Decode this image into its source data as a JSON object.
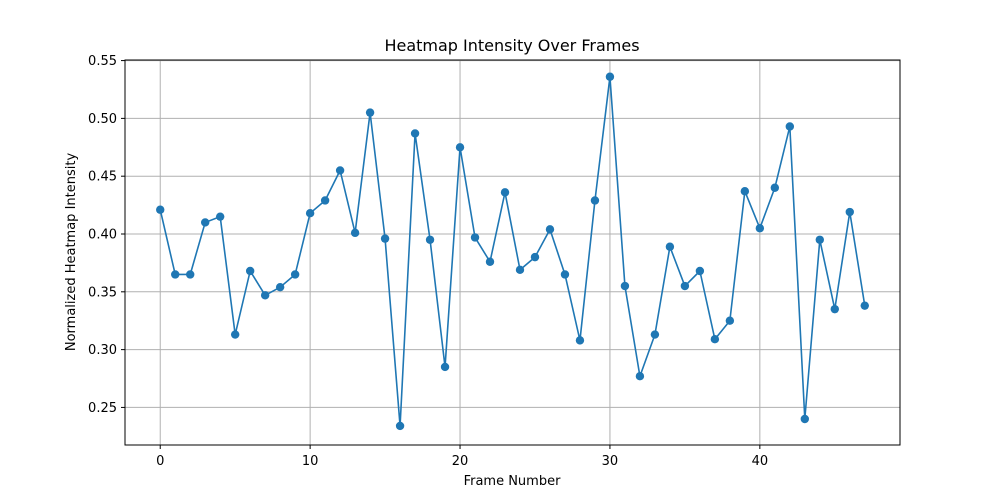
{
  "chart_data": {
    "type": "line",
    "title": "Heatmap Intensity Over Frames",
    "xlabel": "Frame Number",
    "ylabel": "Normalized Heatmap Intensity",
    "xlim": [
      -2.35,
      49.35
    ],
    "ylim": [
      0.2175,
      0.5505
    ],
    "xticks": [
      0,
      10,
      20,
      30,
      40
    ],
    "xtick_labels": [
      "0",
      "10",
      "20",
      "30",
      "40"
    ],
    "yticks": [
      0.25,
      0.3,
      0.35,
      0.4,
      0.45,
      0.5,
      0.55
    ],
    "ytick_labels": [
      "0.25",
      "0.30",
      "0.35",
      "0.40",
      "0.45",
      "0.50",
      "0.55"
    ],
    "grid": true,
    "legend": "none",
    "series": [
      {
        "color": "#1f77b4",
        "marker": "circle",
        "x": [
          0,
          1,
          2,
          3,
          4,
          5,
          6,
          7,
          8,
          9,
          10,
          11,
          12,
          13,
          14,
          15,
          16,
          17,
          18,
          19,
          20,
          21,
          22,
          23,
          24,
          25,
          26,
          27,
          28,
          29,
          30,
          31,
          32,
          33,
          34,
          35,
          36,
          37,
          38,
          39,
          40,
          41,
          42,
          43,
          44,
          45,
          46,
          47
        ],
        "y": [
          0.421,
          0.365,
          0.365,
          0.41,
          0.415,
          0.313,
          0.368,
          0.347,
          0.354,
          0.365,
          0.418,
          0.429,
          0.455,
          0.401,
          0.505,
          0.396,
          0.234,
          0.487,
          0.395,
          0.285,
          0.475,
          0.397,
          0.376,
          0.436,
          0.369,
          0.38,
          0.404,
          0.365,
          0.308,
          0.429,
          0.536,
          0.355,
          0.277,
          0.313,
          0.389,
          0.355,
          0.368,
          0.309,
          0.325,
          0.437,
          0.405,
          0.44,
          0.493,
          0.24,
          0.395,
          0.335,
          0.419,
          0.338
        ]
      }
    ]
  }
}
